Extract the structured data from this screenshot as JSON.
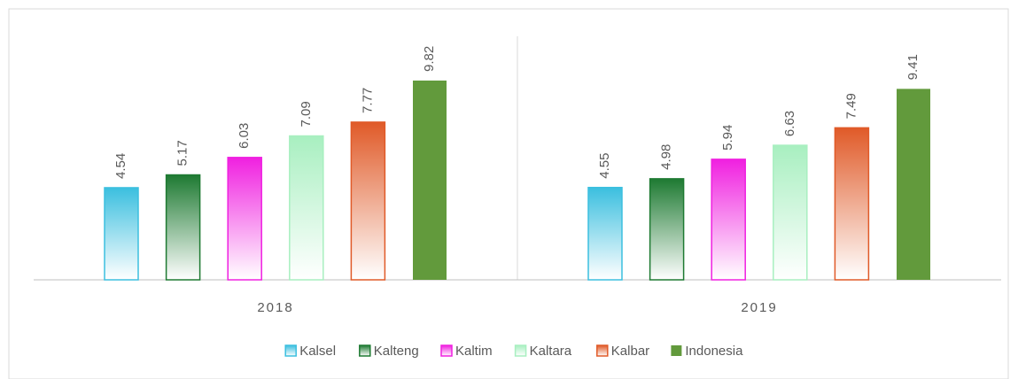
{
  "chart_data": {
    "type": "bar",
    "categories": [
      "2018",
      "2019"
    ],
    "series": [
      {
        "name": "Kalsel",
        "color": "#3bbfdf",
        "gradient": true,
        "values": [
          4.54,
          4.55
        ]
      },
      {
        "name": "Kalteng",
        "color": "#1e7a32",
        "gradient": true,
        "values": [
          5.17,
          4.98
        ]
      },
      {
        "name": "Kaltim",
        "color": "#f020e0",
        "gradient": true,
        "values": [
          6.03,
          5.94
        ]
      },
      {
        "name": "Kaltara",
        "color": "#a8efc0",
        "gradient": true,
        "values": [
          7.09,
          6.63
        ]
      },
      {
        "name": "Kalbar",
        "color": "#e05a28",
        "gradient": true,
        "values": [
          7.77,
          7.49
        ]
      },
      {
        "name": "Indonesia",
        "color": "#629a3c",
        "gradient": false,
        "values": [
          9.82,
          9.41
        ]
      }
    ],
    "ylim": [
      0,
      12
    ],
    "legend": "bottom"
  }
}
